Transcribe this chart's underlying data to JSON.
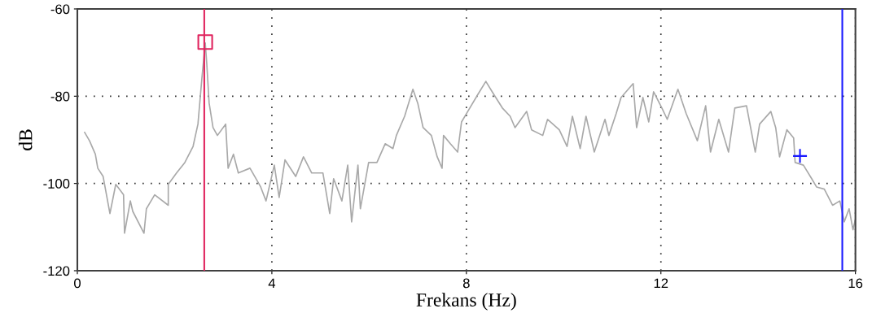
{
  "chart_data": {
    "type": "line",
    "xlabel": "Frekans (Hz)",
    "ylabel": "dB",
    "xlim": [
      0,
      16
    ],
    "xticks": [
      0,
      4,
      8,
      12,
      16
    ],
    "ylim": [
      -120,
      -60
    ],
    "yticks": [
      -120,
      -100,
      -80,
      -60
    ],
    "grid": true,
    "series": [
      {
        "color": "#a9a9a9",
        "x": [
          0.15,
          0.25,
          0.37,
          0.42,
          0.53,
          0.67,
          0.79,
          0.95,
          0.97,
          1.09,
          1.14,
          1.37,
          1.42,
          1.59,
          1.87,
          1.87,
          2.04,
          2.21,
          2.38,
          2.48,
          2.56,
          2.63,
          2.66,
          2.71,
          2.79,
          2.88,
          3.05,
          3.1,
          3.21,
          3.31,
          3.55,
          3.77,
          3.88,
          4.05,
          4.15,
          4.27,
          4.49,
          4.65,
          4.82,
          5.05,
          5.19,
          5.27,
          5.44,
          5.56,
          5.64,
          5.77,
          5.82,
          5.99,
          6.16,
          6.33,
          6.49,
          6.56,
          6.73,
          6.9,
          7.0,
          7.11,
          7.28,
          7.4,
          7.5,
          7.53,
          7.67,
          7.82,
          7.9,
          8.07,
          8.23,
          8.4,
          8.57,
          8.74,
          8.9,
          9.0,
          9.24,
          9.34,
          9.57,
          9.67,
          9.91,
          10.07,
          10.18,
          10.34,
          10.46,
          10.63,
          10.85,
          10.93,
          11.08,
          11.18,
          11.43,
          11.5,
          11.63,
          11.75,
          11.85,
          12.02,
          12.13,
          12.35,
          12.52,
          12.75,
          12.92,
          13.02,
          13.19,
          13.39,
          13.52,
          13.76,
          13.94,
          14.03,
          14.26,
          14.36,
          14.44,
          14.59,
          14.73,
          14.76,
          14.93,
          15.1,
          15.2,
          15.36,
          15.53,
          15.68,
          15.77,
          15.87,
          15.95,
          16.0
        ],
        "values": [
          -88.3,
          -90.2,
          -93.3,
          -96.5,
          -98.4,
          -106.9,
          -100.2,
          -102.6,
          -111.4,
          -104,
          -106.4,
          -111.4,
          -105.8,
          -102.6,
          -105,
          -100.2,
          -97.6,
          -95.2,
          -91.5,
          -86.4,
          -76,
          -67.8,
          -72.3,
          -81.6,
          -87.2,
          -89,
          -86.4,
          -96.5,
          -93.3,
          -97.6,
          -96.5,
          -100.8,
          -104,
          -95.8,
          -103.2,
          -94.6,
          -98.4,
          -93.9,
          -97.6,
          -97.6,
          -106.9,
          -98.9,
          -104,
          -95.8,
          -108.8,
          -95.8,
          -105.8,
          -95.2,
          -95.2,
          -90.9,
          -92,
          -89,
          -84.6,
          -78.4,
          -81.6,
          -87.2,
          -89,
          -93.9,
          -96.5,
          -89,
          -90.9,
          -92.8,
          -85.9,
          -82.7,
          -79.7,
          -76.6,
          -79.7,
          -82.7,
          -84.6,
          -87.2,
          -83.5,
          -87.7,
          -89,
          -85.3,
          -87.7,
          -91.5,
          -84.6,
          -92,
          -84.6,
          -92.8,
          -85.3,
          -89,
          -84,
          -80.3,
          -77.1,
          -87.2,
          -80.3,
          -85.9,
          -79,
          -82.7,
          -85.3,
          -78.4,
          -84,
          -90.2,
          -82.2,
          -92.8,
          -85.3,
          -92.8,
          -82.7,
          -82.2,
          -92.8,
          -86.4,
          -83.5,
          -87.2,
          -93.9,
          -87.7,
          -89.6,
          -95.2,
          -95.8,
          -98.9,
          -100.8,
          -101.3,
          -105,
          -104,
          -108.8,
          -105.8,
          -110.6,
          -108.2
        ]
      },
      {
        "type": "scatter",
        "color": "#e0245e",
        "marker": "square",
        "x": [
          2.63
        ],
        "values": [
          -67.6
        ]
      },
      {
        "type": "scatter",
        "color": "#1a1aff",
        "marker": "cross",
        "x": [
          14.86
        ],
        "values": [
          -93.7
        ]
      }
    ],
    "ref_lines": [
      {
        "axis": "x",
        "value": 2.61,
        "color": "#e0245e"
      },
      {
        "axis": "x",
        "value": 15.73,
        "color": "#1a1aff"
      }
    ]
  }
}
